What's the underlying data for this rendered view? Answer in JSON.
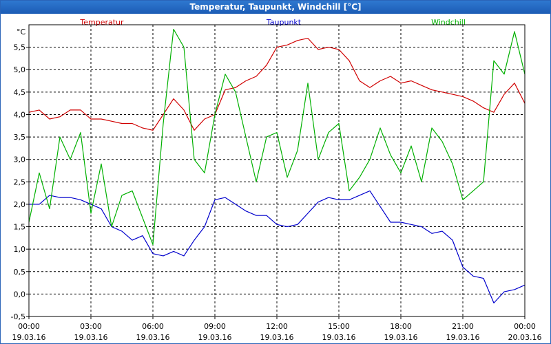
{
  "window": {
    "title": "Temperatur, Taupunkt, Windchill [°C]"
  },
  "chart_data": {
    "type": "line",
    "ylabel": "°C",
    "ylim": [
      -0.5,
      6.0
    ],
    "xlim": [
      "2016-03-19 00:00",
      "2016-03-20 00:00"
    ],
    "grid": true,
    "y_ticks": [
      "5,5",
      "5,0",
      "4,5",
      "4,0",
      "3,5",
      "3,0",
      "2,5",
      "2,0",
      "1,5",
      "1,0",
      "0,5",
      "0,0",
      "-0,5"
    ],
    "x_ticks": [
      {
        "time": "00:00",
        "date": "19.03.16"
      },
      {
        "time": "03:00",
        "date": "19.03.16"
      },
      {
        "time": "06:00",
        "date": "19.03.16"
      },
      {
        "time": "09:00",
        "date": "19.03.16"
      },
      {
        "time": "12:00",
        "date": "19.03.16"
      },
      {
        "time": "15:00",
        "date": "19.03.16"
      },
      {
        "time": "18:00",
        "date": "19.03.16"
      },
      {
        "time": "21:00",
        "date": "19.03.16"
      },
      {
        "time": "00:00",
        "date": "20.03.16"
      }
    ],
    "x_hours": [
      0,
      0.5,
      1,
      1.5,
      2,
      2.5,
      3,
      3.5,
      4,
      4.5,
      5,
      5.5,
      6,
      6.5,
      7,
      7.5,
      8,
      8.5,
      9,
      9.5,
      10,
      10.5,
      11,
      11.5,
      12,
      12.5,
      13,
      13.5,
      14,
      14.5,
      15,
      15.5,
      16,
      16.5,
      17,
      17.5,
      18,
      18.5,
      19,
      19.5,
      20,
      20.5,
      21,
      21.5,
      22,
      22.5,
      23,
      23.5,
      24
    ],
    "series": [
      {
        "name": "Temperatur",
        "color": "#d00000",
        "values": [
          4.05,
          4.1,
          3.9,
          3.95,
          4.1,
          4.1,
          3.9,
          3.9,
          3.85,
          3.8,
          3.8,
          3.7,
          3.65,
          4.0,
          4.35,
          4.1,
          3.65,
          3.9,
          4.0,
          4.55,
          4.6,
          4.75,
          4.85,
          5.1,
          5.5,
          5.55,
          5.65,
          5.7,
          5.45,
          5.5,
          5.45,
          5.2,
          4.75,
          4.6,
          4.75,
          4.85,
          4.7,
          4.75,
          4.65,
          4.55,
          4.5,
          4.45,
          4.4,
          4.3,
          4.15,
          4.05,
          4.45,
          4.7,
          4.25
        ]
      },
      {
        "name": "Taupunkt",
        "color": "#0000cc",
        "values": [
          2.0,
          2.0,
          2.2,
          2.15,
          2.15,
          2.1,
          2.0,
          1.9,
          1.5,
          1.4,
          1.2,
          1.3,
          0.9,
          0.85,
          0.95,
          0.85,
          1.2,
          1.5,
          2.1,
          2.15,
          2.0,
          1.85,
          1.75,
          1.75,
          1.55,
          1.5,
          1.55,
          1.8,
          2.05,
          2.15,
          2.1,
          2.1,
          2.2,
          2.3,
          1.95,
          1.6,
          1.6,
          1.55,
          1.5,
          1.35,
          1.4,
          1.2,
          0.6,
          0.4,
          0.35,
          -0.2,
          0.05,
          0.1,
          0.2
        ]
      },
      {
        "name": "Windchill",
        "color": "#00b000",
        "values": [
          1.6,
          2.7,
          1.9,
          3.5,
          3.0,
          3.6,
          1.8,
          2.9,
          1.5,
          2.2,
          2.3,
          1.7,
          1.1,
          3.8,
          5.9,
          5.5,
          3.0,
          2.7,
          4.0,
          4.9,
          4.5,
          3.5,
          2.5,
          3.5,
          3.6,
          2.6,
          3.2,
          4.7,
          3.0,
          3.6,
          3.8,
          2.3,
          2.6,
          3.0,
          3.7,
          3.1,
          2.7,
          3.3,
          2.5,
          3.7,
          3.4,
          2.9,
          2.1,
          2.3,
          2.5,
          5.2,
          4.9,
          5.85,
          4.9
        ]
      }
    ]
  }
}
